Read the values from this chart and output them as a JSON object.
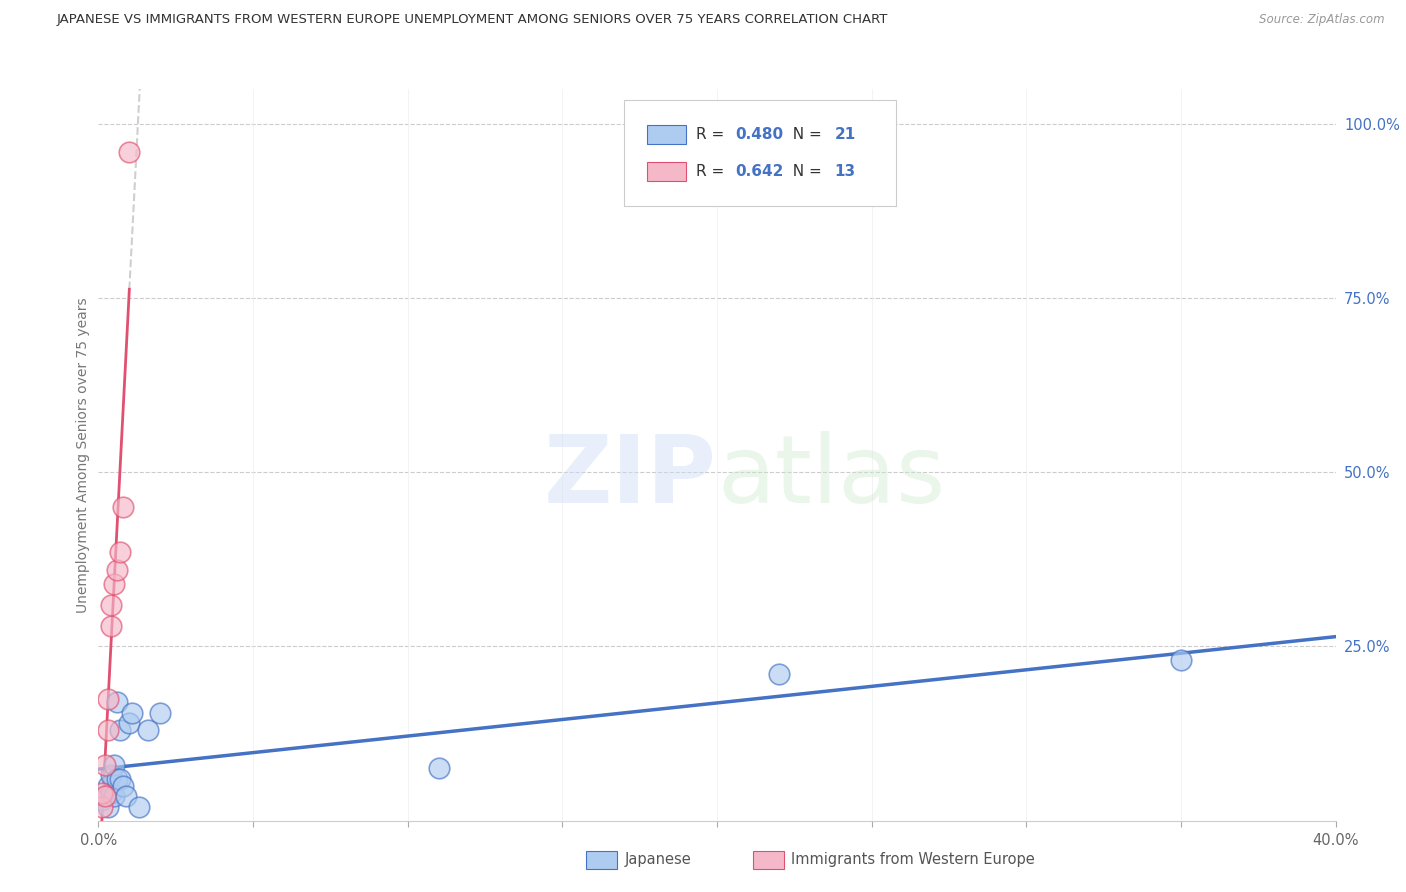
{
  "title": "JAPANESE VS IMMIGRANTS FROM WESTERN EUROPE UNEMPLOYMENT AMONG SENIORS OVER 75 YEARS CORRELATION CHART",
  "source": "Source: ZipAtlas.com",
  "ylabel": "Unemployment Among Seniors over 75 years",
  "xlim": [
    0.0,
    0.4
  ],
  "ylim": [
    0.0,
    1.05
  ],
  "R_japanese": 0.48,
  "N_japanese": 21,
  "R_western": 0.642,
  "N_western": 13,
  "color_japanese": "#aecbf0",
  "color_western": "#f5b8c8",
  "line_color_japanese": "#4472c4",
  "line_color_western": "#e05070",
  "background_color": "#ffffff",
  "watermark_zip": "ZIP",
  "watermark_atlas": "atlas",
  "japanese_x": [
    0.001,
    0.003,
    0.003,
    0.004,
    0.004,
    0.005,
    0.005,
    0.006,
    0.006,
    0.007,
    0.007,
    0.008,
    0.009,
    0.01,
    0.011,
    0.013,
    0.016,
    0.02,
    0.11,
    0.22,
    0.35
  ],
  "japanese_y": [
    0.03,
    0.02,
    0.05,
    0.04,
    0.065,
    0.035,
    0.08,
    0.06,
    0.17,
    0.06,
    0.13,
    0.05,
    0.035,
    0.14,
    0.155,
    0.02,
    0.13,
    0.155,
    0.075,
    0.21,
    0.23
  ],
  "western_x": [
    0.001,
    0.001,
    0.002,
    0.002,
    0.003,
    0.003,
    0.004,
    0.004,
    0.005,
    0.006,
    0.007,
    0.008,
    0.01
  ],
  "western_y": [
    0.02,
    0.04,
    0.035,
    0.08,
    0.13,
    0.175,
    0.28,
    0.31,
    0.34,
    0.36,
    0.385,
    0.45,
    0.96
  ]
}
